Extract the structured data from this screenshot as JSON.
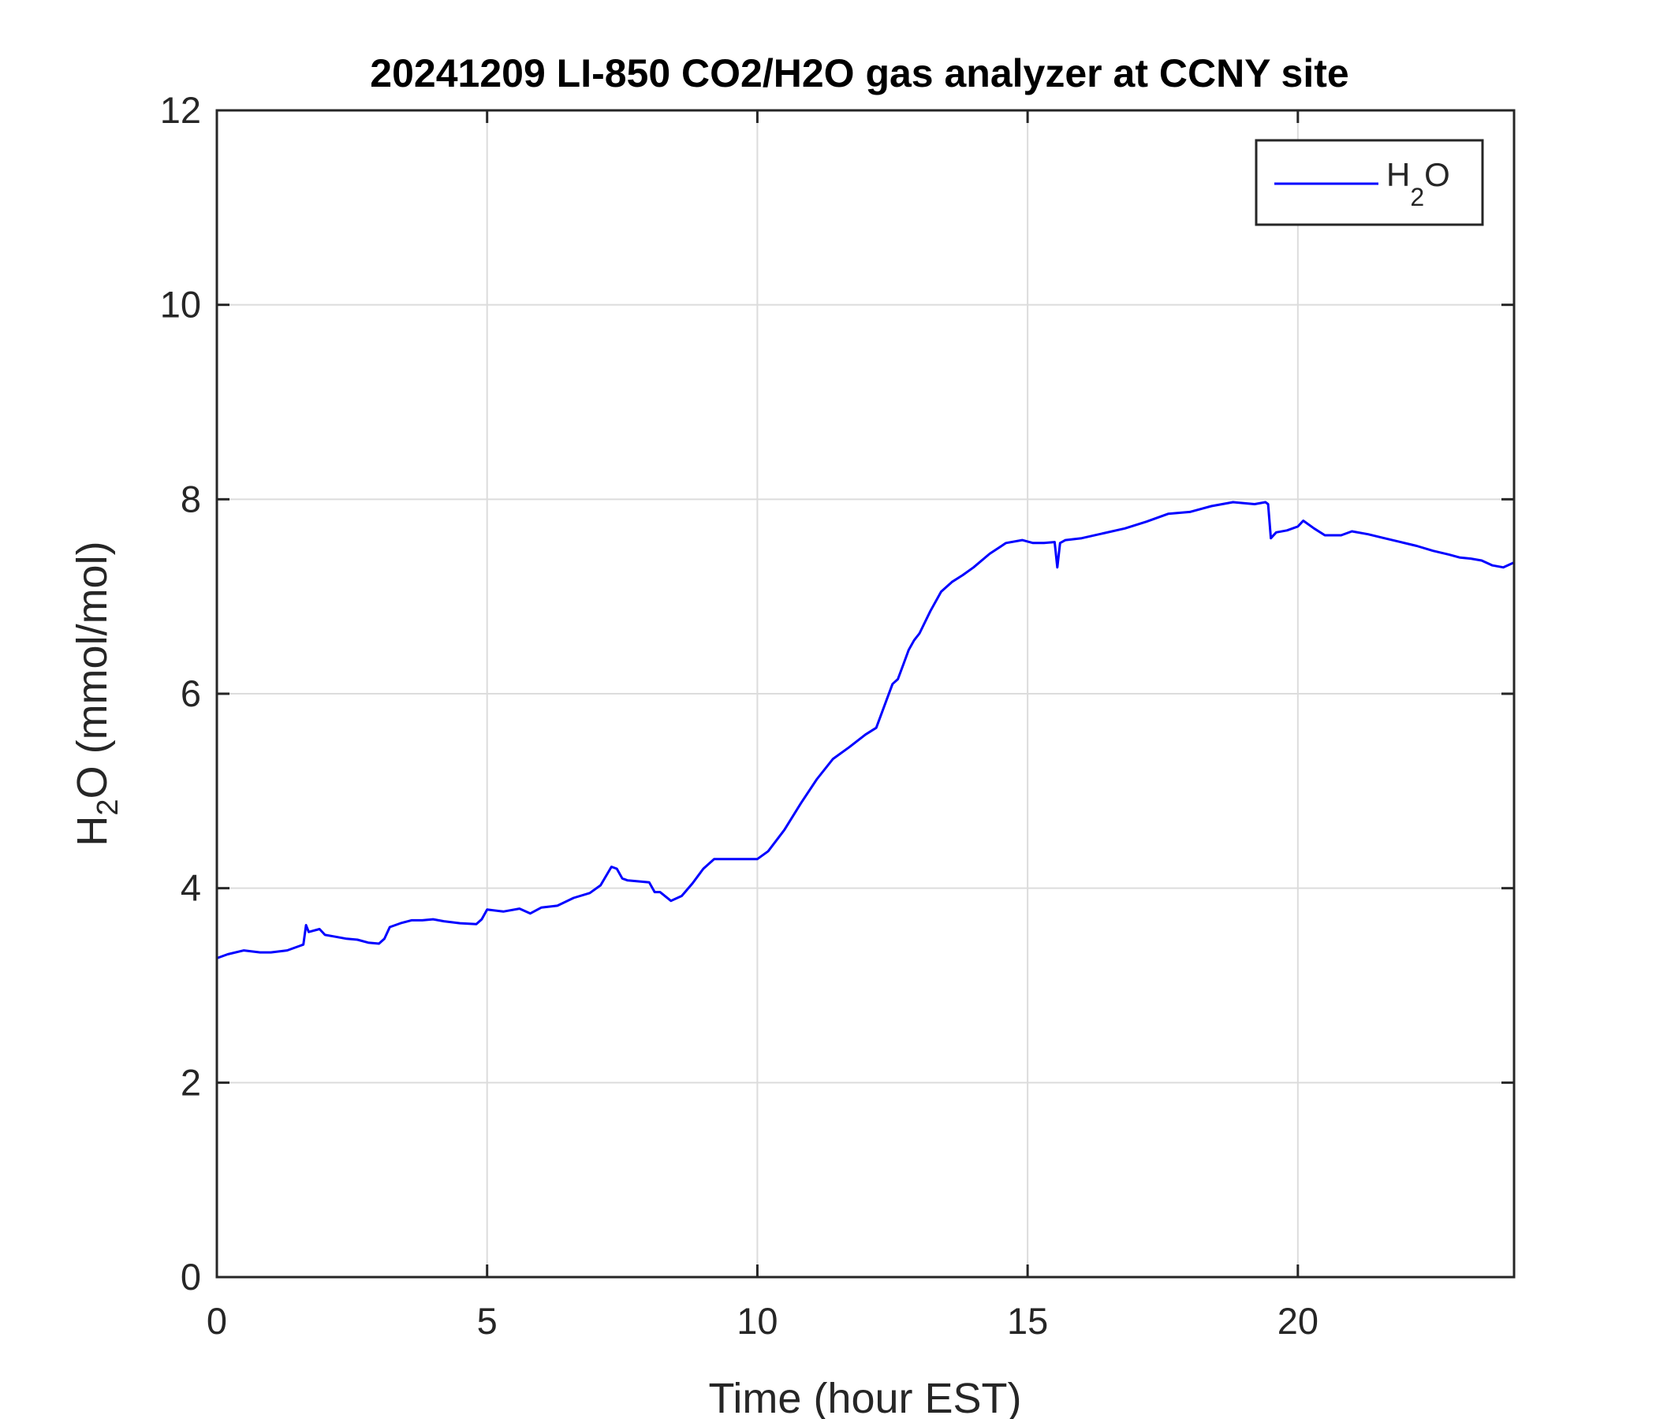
{
  "chart_data": {
    "type": "line",
    "title": "20241209 LI-850 CO2/H2O gas analyzer at CCNY site",
    "xlabel": "Time (hour EST)",
    "ylabel": {
      "main": "H",
      "sub": "2",
      "rest": "O (mmol/mol)"
    },
    "xlim": [
      0,
      24
    ],
    "ylim": [
      0,
      12
    ],
    "xticks": [
      0,
      5,
      10,
      15,
      20
    ],
    "yticks": [
      0,
      2,
      4,
      6,
      8,
      10,
      12
    ],
    "grid": true,
    "legend_position": "top-right",
    "series": [
      {
        "name": {
          "main": "H",
          "sub": "2",
          "rest": "O"
        },
        "color": "#0000ff",
        "x": [
          0,
          0.2,
          0.5,
          0.8,
          1.0,
          1.3,
          1.6,
          1.65,
          1.7,
          1.9,
          2.0,
          2.2,
          2.4,
          2.6,
          2.8,
          3.0,
          3.1,
          3.2,
          3.4,
          3.6,
          3.8,
          4.0,
          4.2,
          4.5,
          4.8,
          4.9,
          5.0,
          5.3,
          5.6,
          5.8,
          6.0,
          6.3,
          6.6,
          6.9,
          7.1,
          7.3,
          7.4,
          7.5,
          7.6,
          7.8,
          8.0,
          8.1,
          8.2,
          8.4,
          8.6,
          8.8,
          9.0,
          9.2,
          9.4,
          9.6,
          9.8,
          10.0,
          10.2,
          10.5,
          10.8,
          11.1,
          11.4,
          11.7,
          12.0,
          12.2,
          12.4,
          12.5,
          12.6,
          12.7,
          12.8,
          12.9,
          13.0,
          13.2,
          13.4,
          13.6,
          13.8,
          14.0,
          14.3,
          14.6,
          14.9,
          15.1,
          15.3,
          15.5,
          15.55,
          15.6,
          15.7,
          16.0,
          16.4,
          16.8,
          17.2,
          17.6,
          18.0,
          18.4,
          18.8,
          19.0,
          19.2,
          19.4,
          19.45,
          19.5,
          19.6,
          19.8,
          20.0,
          20.1,
          20.3,
          20.5,
          20.8,
          21.0,
          21.3,
          21.6,
          21.9,
          22.2,
          22.5,
          22.8,
          23.0,
          23.2,
          23.4,
          23.6,
          23.8,
          24.0
        ],
        "y": [
          3.28,
          3.32,
          3.36,
          3.34,
          3.34,
          3.36,
          3.42,
          3.62,
          3.55,
          3.58,
          3.52,
          3.5,
          3.48,
          3.47,
          3.44,
          3.43,
          3.48,
          3.6,
          3.64,
          3.67,
          3.67,
          3.68,
          3.66,
          3.64,
          3.63,
          3.68,
          3.78,
          3.76,
          3.79,
          3.74,
          3.8,
          3.82,
          3.9,
          3.95,
          4.03,
          4.22,
          4.2,
          4.1,
          4.08,
          4.07,
          4.06,
          3.96,
          3.96,
          3.87,
          3.92,
          4.05,
          4.2,
          4.3,
          4.3,
          4.3,
          4.3,
          4.3,
          4.38,
          4.6,
          4.87,
          5.12,
          5.33,
          5.45,
          5.58,
          5.65,
          5.95,
          6.1,
          6.15,
          6.3,
          6.45,
          6.55,
          6.62,
          6.85,
          7.05,
          7.15,
          7.22,
          7.3,
          7.44,
          7.55,
          7.58,
          7.55,
          7.55,
          7.56,
          7.3,
          7.55,
          7.58,
          7.6,
          7.65,
          7.7,
          7.77,
          7.85,
          7.87,
          7.93,
          7.97,
          7.96,
          7.95,
          7.97,
          7.95,
          7.6,
          7.66,
          7.68,
          7.72,
          7.78,
          7.7,
          7.63,
          7.63,
          7.67,
          7.64,
          7.6,
          7.56,
          7.52,
          7.47,
          7.43,
          7.4,
          7.39,
          7.37,
          7.32,
          7.3,
          7.35
        ]
      }
    ]
  }
}
